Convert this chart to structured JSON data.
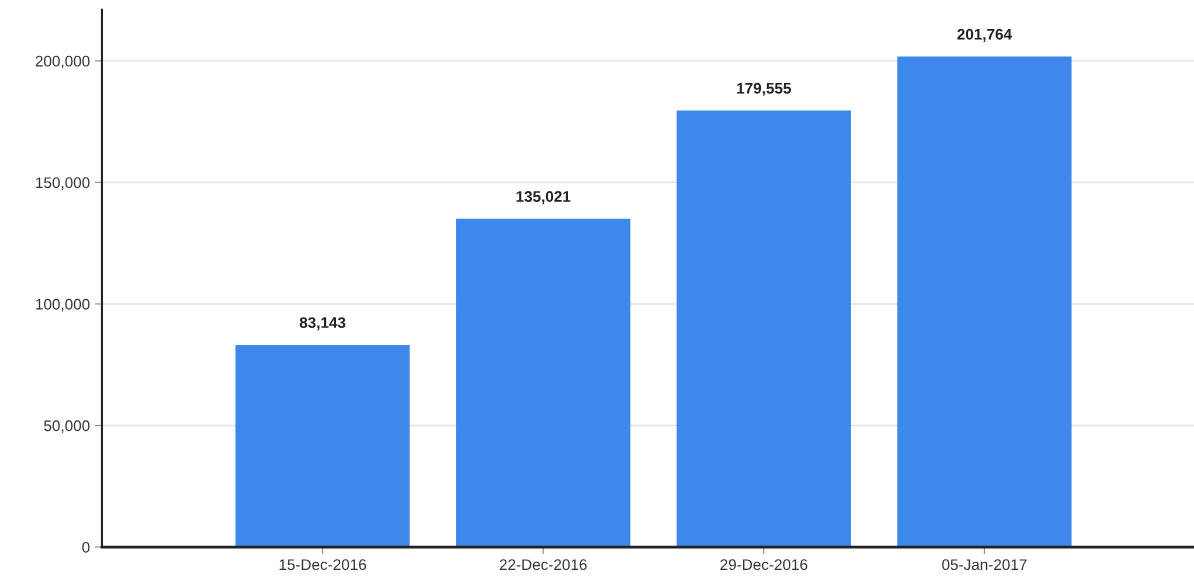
{
  "chart_data": {
    "type": "bar",
    "categories": [
      "15-Dec-2016",
      "22-Dec-2016",
      "29-Dec-2016",
      "05-Jan-2017"
    ],
    "values": [
      83143,
      135021,
      179555,
      201764
    ],
    "color": "#3d88ea",
    "ylim": [
      0,
      221000
    ],
    "yticks": [
      {
        "value": 0,
        "label": "0"
      },
      {
        "value": 50000,
        "label": "50,000"
      },
      {
        "value": 100000,
        "label": "100,000"
      },
      {
        "value": 150000,
        "label": "150,000"
      },
      {
        "value": 200000,
        "label": "200,000"
      }
    ],
    "grid": "y",
    "value_labels": [
      "83,143",
      "135,021",
      "179,555",
      "201,764"
    ]
  }
}
